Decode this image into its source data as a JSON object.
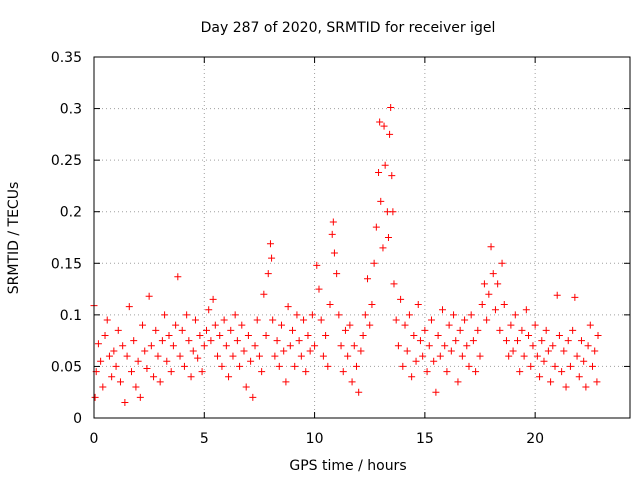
{
  "chart_data": {
    "type": "scatter",
    "title": "Day 287 of 2020, SRMTID for receiver igel",
    "xlabel": "GPS time / hours",
    "ylabel": "SRMTID / TECUs",
    "xlim": [
      0,
      24.3
    ],
    "ylim": [
      0,
      0.35
    ],
    "xticks": [
      0,
      5,
      10,
      15,
      20
    ],
    "xtick_labels": [
      "0",
      "5",
      "10",
      "15",
      "20"
    ],
    "yticks": [
      0,
      0.05,
      0.1,
      0.15,
      0.2,
      0.25,
      0.3,
      0.35
    ],
    "ytick_labels": [
      "0",
      "0.05",
      "0.1",
      "0.15",
      "0.2",
      "0.25",
      "0.3",
      "0.35"
    ],
    "grid": true,
    "marker": "+",
    "color": "#ff0000",
    "series": [
      {
        "name": "SRMTID",
        "points": [
          [
            0.0,
            0.109
          ],
          [
            0.05,
            0.02
          ],
          [
            0.1,
            0.045
          ],
          [
            0.2,
            0.072
          ],
          [
            0.3,
            0.055
          ],
          [
            0.4,
            0.03
          ],
          [
            0.5,
            0.08
          ],
          [
            0.6,
            0.095
          ],
          [
            0.7,
            0.06
          ],
          [
            0.8,
            0.04
          ],
          [
            0.9,
            0.065
          ],
          [
            1.0,
            0.05
          ],
          [
            1.1,
            0.085
          ],
          [
            1.2,
            0.035
          ],
          [
            1.3,
            0.07
          ],
          [
            1.4,
            0.015
          ],
          [
            1.5,
            0.06
          ],
          [
            1.6,
            0.108
          ],
          [
            1.7,
            0.045
          ],
          [
            1.8,
            0.075
          ],
          [
            1.9,
            0.03
          ],
          [
            2.0,
            0.055
          ],
          [
            2.1,
            0.02
          ],
          [
            2.2,
            0.09
          ],
          [
            2.3,
            0.065
          ],
          [
            2.4,
            0.048
          ],
          [
            2.5,
            0.118
          ],
          [
            2.6,
            0.07
          ],
          [
            2.7,
            0.04
          ],
          [
            2.8,
            0.085
          ],
          [
            2.9,
            0.06
          ],
          [
            3.0,
            0.035
          ],
          [
            3.1,
            0.075
          ],
          [
            3.2,
            0.1
          ],
          [
            3.3,
            0.055
          ],
          [
            3.4,
            0.08
          ],
          [
            3.5,
            0.045
          ],
          [
            3.6,
            0.07
          ],
          [
            3.7,
            0.09
          ],
          [
            3.8,
            0.137
          ],
          [
            3.9,
            0.06
          ],
          [
            4.0,
            0.085
          ],
          [
            4.1,
            0.05
          ],
          [
            4.2,
            0.1
          ],
          [
            4.3,
            0.075
          ],
          [
            4.4,
            0.04
          ],
          [
            4.5,
            0.065
          ],
          [
            4.6,
            0.095
          ],
          [
            4.7,
            0.058
          ],
          [
            4.8,
            0.08
          ],
          [
            4.9,
            0.045
          ],
          [
            5.0,
            0.07
          ],
          [
            5.1,
            0.085
          ],
          [
            5.2,
            0.105
          ],
          [
            5.3,
            0.075
          ],
          [
            5.4,
            0.115
          ],
          [
            5.5,
            0.09
          ],
          [
            5.6,
            0.06
          ],
          [
            5.7,
            0.08
          ],
          [
            5.8,
            0.05
          ],
          [
            5.9,
            0.095
          ],
          [
            6.0,
            0.07
          ],
          [
            6.1,
            0.04
          ],
          [
            6.2,
            0.085
          ],
          [
            6.3,
            0.06
          ],
          [
            6.4,
            0.1
          ],
          [
            6.5,
            0.075
          ],
          [
            6.6,
            0.05
          ],
          [
            6.7,
            0.09
          ],
          [
            6.8,
            0.065
          ],
          [
            6.9,
            0.03
          ],
          [
            7.0,
            0.08
          ],
          [
            7.1,
            0.055
          ],
          [
            7.2,
            0.02
          ],
          [
            7.3,
            0.07
          ],
          [
            7.4,
            0.095
          ],
          [
            7.5,
            0.06
          ],
          [
            7.6,
            0.045
          ],
          [
            7.7,
            0.12
          ],
          [
            7.8,
            0.08
          ],
          [
            7.9,
            0.14
          ],
          [
            8.0,
            0.169
          ],
          [
            8.05,
            0.155
          ],
          [
            8.1,
            0.095
          ],
          [
            8.2,
            0.06
          ],
          [
            8.3,
            0.075
          ],
          [
            8.4,
            0.05
          ],
          [
            8.5,
            0.09
          ],
          [
            8.6,
            0.065
          ],
          [
            8.7,
            0.035
          ],
          [
            8.8,
            0.108
          ],
          [
            8.9,
            0.07
          ],
          [
            9.0,
            0.085
          ],
          [
            9.1,
            0.05
          ],
          [
            9.2,
            0.1
          ],
          [
            9.3,
            0.075
          ],
          [
            9.4,
            0.06
          ],
          [
            9.5,
            0.095
          ],
          [
            9.6,
            0.045
          ],
          [
            9.7,
            0.08
          ],
          [
            9.8,
            0.065
          ],
          [
            9.9,
            0.1
          ],
          [
            10.0,
            0.07
          ],
          [
            10.1,
            0.148
          ],
          [
            10.2,
            0.125
          ],
          [
            10.3,
            0.095
          ],
          [
            10.4,
            0.06
          ],
          [
            10.5,
            0.08
          ],
          [
            10.6,
            0.05
          ],
          [
            10.7,
            0.11
          ],
          [
            10.8,
            0.178
          ],
          [
            10.85,
            0.19
          ],
          [
            10.9,
            0.16
          ],
          [
            11.0,
            0.14
          ],
          [
            11.1,
            0.1
          ],
          [
            11.2,
            0.07
          ],
          [
            11.3,
            0.045
          ],
          [
            11.4,
            0.085
          ],
          [
            11.5,
            0.06
          ],
          [
            11.6,
            0.09
          ],
          [
            11.7,
            0.035
          ],
          [
            11.8,
            0.07
          ],
          [
            11.9,
            0.05
          ],
          [
            12.0,
            0.025
          ],
          [
            12.1,
            0.065
          ],
          [
            12.2,
            0.08
          ],
          [
            12.3,
            0.1
          ],
          [
            12.4,
            0.135
          ],
          [
            12.5,
            0.09
          ],
          [
            12.6,
            0.11
          ],
          [
            12.7,
            0.15
          ],
          [
            12.8,
            0.185
          ],
          [
            12.9,
            0.238
          ],
          [
            12.95,
            0.287
          ],
          [
            13.0,
            0.21
          ],
          [
            13.1,
            0.165
          ],
          [
            13.15,
            0.283
          ],
          [
            13.2,
            0.245
          ],
          [
            13.3,
            0.2
          ],
          [
            13.35,
            0.175
          ],
          [
            13.4,
            0.275
          ],
          [
            13.45,
            0.301
          ],
          [
            13.5,
            0.235
          ],
          [
            13.55,
            0.2
          ],
          [
            13.6,
            0.13
          ],
          [
            13.7,
            0.095
          ],
          [
            13.8,
            0.07
          ],
          [
            13.9,
            0.115
          ],
          [
            14.0,
            0.05
          ],
          [
            14.1,
            0.09
          ],
          [
            14.2,
            0.065
          ],
          [
            14.3,
            0.1
          ],
          [
            14.4,
            0.04
          ],
          [
            14.5,
            0.08
          ],
          [
            14.6,
            0.055
          ],
          [
            14.7,
            0.11
          ],
          [
            14.8,
            0.075
          ],
          [
            14.9,
            0.06
          ],
          [
            15.0,
            0.085
          ],
          [
            15.1,
            0.045
          ],
          [
            15.2,
            0.07
          ],
          [
            15.3,
            0.095
          ],
          [
            15.4,
            0.055
          ],
          [
            15.5,
            0.025
          ],
          [
            15.6,
            0.08
          ],
          [
            15.7,
            0.06
          ],
          [
            15.8,
            0.105
          ],
          [
            15.9,
            0.07
          ],
          [
            16.0,
            0.045
          ],
          [
            16.1,
            0.09
          ],
          [
            16.2,
            0.065
          ],
          [
            16.3,
            0.1
          ],
          [
            16.4,
            0.075
          ],
          [
            16.5,
            0.035
          ],
          [
            16.6,
            0.085
          ],
          [
            16.7,
            0.06
          ],
          [
            16.8,
            0.095
          ],
          [
            16.9,
            0.07
          ],
          [
            17.0,
            0.05
          ],
          [
            17.1,
            0.1
          ],
          [
            17.2,
            0.075
          ],
          [
            17.3,
            0.045
          ],
          [
            17.4,
            0.085
          ],
          [
            17.5,
            0.06
          ],
          [
            17.6,
            0.11
          ],
          [
            17.7,
            0.13
          ],
          [
            17.8,
            0.095
          ],
          [
            17.9,
            0.12
          ],
          [
            18.0,
            0.166
          ],
          [
            18.1,
            0.14
          ],
          [
            18.2,
            0.105
          ],
          [
            18.3,
            0.13
          ],
          [
            18.4,
            0.085
          ],
          [
            18.5,
            0.15
          ],
          [
            18.6,
            0.11
          ],
          [
            18.7,
            0.075
          ],
          [
            18.8,
            0.06
          ],
          [
            18.9,
            0.09
          ],
          [
            19.0,
            0.065
          ],
          [
            19.1,
            0.1
          ],
          [
            19.2,
            0.075
          ],
          [
            19.3,
            0.045
          ],
          [
            19.4,
            0.085
          ],
          [
            19.5,
            0.06
          ],
          [
            19.6,
            0.105
          ],
          [
            19.7,
            0.08
          ],
          [
            19.8,
            0.05
          ],
          [
            19.9,
            0.07
          ],
          [
            20.0,
            0.09
          ],
          [
            20.1,
            0.06
          ],
          [
            20.2,
            0.04
          ],
          [
            20.3,
            0.075
          ],
          [
            20.4,
            0.055
          ],
          [
            20.5,
            0.085
          ],
          [
            20.6,
            0.065
          ],
          [
            20.7,
            0.035
          ],
          [
            20.8,
            0.07
          ],
          [
            20.9,
            0.05
          ],
          [
            21.0,
            0.119
          ],
          [
            21.1,
            0.08
          ],
          [
            21.2,
            0.045
          ],
          [
            21.3,
            0.065
          ],
          [
            21.4,
            0.03
          ],
          [
            21.5,
            0.075
          ],
          [
            21.6,
            0.05
          ],
          [
            21.7,
            0.085
          ],
          [
            21.8,
            0.117
          ],
          [
            21.9,
            0.06
          ],
          [
            22.0,
            0.04
          ],
          [
            22.1,
            0.075
          ],
          [
            22.2,
            0.055
          ],
          [
            22.3,
            0.03
          ],
          [
            22.4,
            0.07
          ],
          [
            22.5,
            0.09
          ],
          [
            22.6,
            0.05
          ],
          [
            22.7,
            0.065
          ],
          [
            22.8,
            0.035
          ],
          [
            22.85,
            0.08
          ]
        ]
      }
    ]
  }
}
